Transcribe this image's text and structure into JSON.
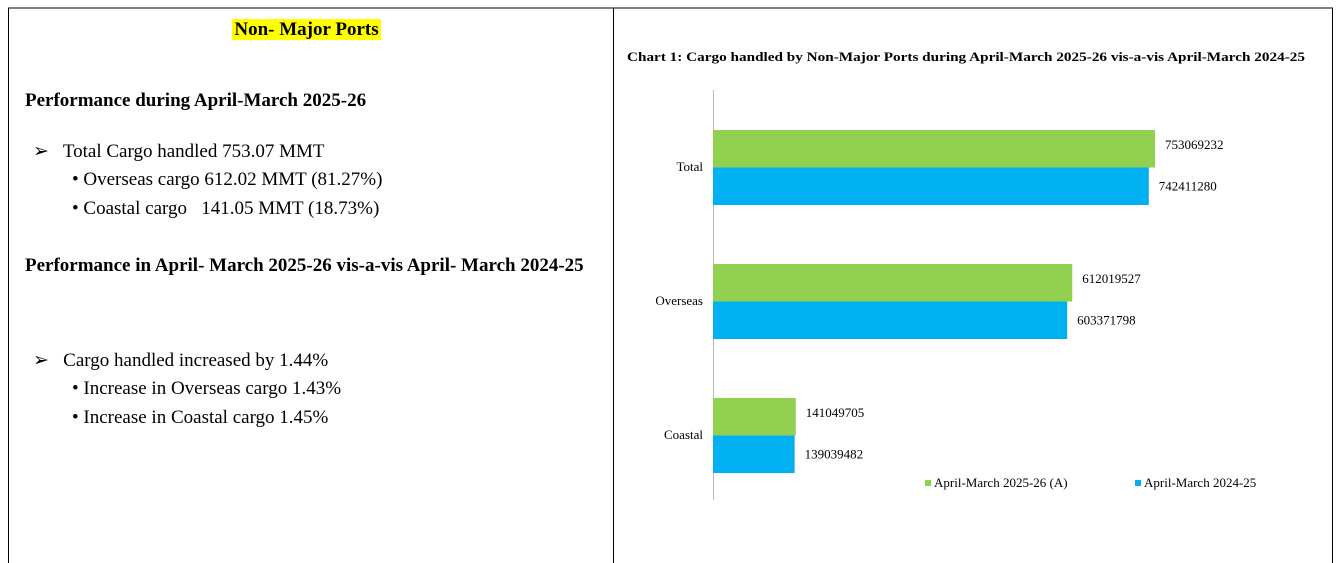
{
  "header": {
    "title": "Non- Major Ports"
  },
  "sections": [
    {
      "heading": "Performance during April-March 2025-26",
      "items": [
        {
          "text": "Total Cargo handled 753.07 MMT",
          "subitems": [
            "Overseas cargo 612.02 MMT (81.27%)",
            "Coastal cargo   141.05 MMT (18.73%)"
          ]
        }
      ]
    },
    {
      "heading": "Performance in April- March 2025-26 vis-a-vis April- March 2024-25",
      "items": [
        {
          "text": "Cargo handled increased by 1.44%",
          "subitems": [
            "Increase in Overseas cargo 1.43%",
            "Increase in Coastal cargo 1.45%"
          ]
        }
      ]
    }
  ],
  "chart_data": {
    "type": "barh",
    "title": "Chart 1: Cargo handled by Non-Major Ports during April-March 2025-26 vis-a-vis April-March 2024-25",
    "categories": [
      "Total",
      "Overseas",
      "Coastal"
    ],
    "series": [
      {
        "name": "April-March 2025-26 (A)",
        "color": "#92d050",
        "values": [
          753069232,
          612019527,
          141049705
        ]
      },
      {
        "name": "April-March 2024-25",
        "color": "#00b0f0",
        "values": [
          742411280,
          603371798,
          139039482
        ]
      }
    ],
    "xlim": [
      0,
      1000000000
    ],
    "legend": "bottom-right"
  }
}
